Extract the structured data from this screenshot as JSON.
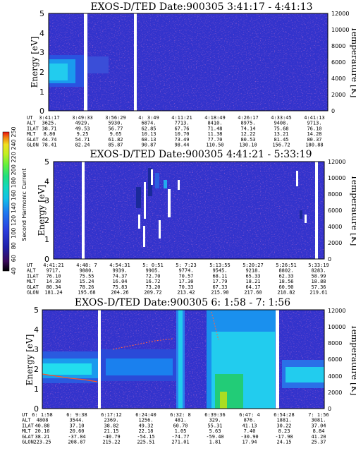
{
  "chart_data": [
    {
      "type": "heatmap",
      "title": "EXOS-D/TED   Date:900305  3:41:17 - 4:41:13",
      "ylabel": "Energy [eV]",
      "y2label": "Temperature [K]",
      "ylim": [
        0,
        5
      ],
      "y2lim": [
        0,
        12000
      ],
      "yticks": [
        "0",
        "1",
        "2",
        "3",
        "4",
        "5"
      ],
      "y2ticks": [
        "0",
        "2000",
        "4000",
        "6000",
        "8000",
        "10000",
        "12000"
      ],
      "info_labels": [
        "UT",
        "ALT",
        "ILAT",
        "MLT",
        "GLAT",
        "GLON"
      ],
      "info_columns": [
        [
          "3:41:17",
          "3625.",
          "38.71",
          "8.80",
          "44.74",
          "78.41"
        ],
        [
          "3:49:33",
          "4929.",
          "49.53",
          "9.25",
          "54.71",
          "82.24"
        ],
        [
          "3:56:29",
          "5930.",
          "56.77",
          "9.65",
          "61.82",
          "85.87"
        ],
        [
          "4: 3:49",
          "6874.",
          "62.85",
          "10.13",
          "68.13",
          "90.87"
        ],
        [
          "4:11:21",
          "7713.",
          "67.76",
          "10.70",
          "73.49",
          "98.44"
        ],
        [
          "4:18:49",
          "8410.",
          "71.48",
          "11.38",
          "77.70",
          "110.50"
        ],
        [
          "4:26:17",
          "8975.",
          "74.14",
          "12.22",
          "80.53",
          "130.10"
        ],
        [
          "4:33:45",
          "9408.",
          "75.68",
          "13.21",
          "81.45",
          "156.72"
        ],
        [
          "4:41:13",
          "9713.",
          "76.10",
          "14.28",
          "80.37",
          "180.88"
        ]
      ],
      "gaps_fraction": [
        0.083,
        0.199
      ]
    },
    {
      "type": "heatmap",
      "title": "EXOS-D/TED   Date:900305  4:41:21 - 5:33:19",
      "ylabel": "Energy [eV]",
      "y2label": "Temperature [K]",
      "ylim": [
        0,
        5
      ],
      "y2lim": [
        0,
        12000
      ],
      "yticks": [
        "0",
        "1",
        "2",
        "3",
        "4",
        "5"
      ],
      "y2ticks": [
        "0",
        "2000",
        "4000",
        "6000",
        "8000",
        "10000",
        "12000"
      ],
      "info_labels": [
        "UT",
        "ALT",
        "ILAT",
        "MLT",
        "GLAT",
        "GLON"
      ],
      "info_columns": [
        [
          "4:41:21",
          "9717.",
          "76.10",
          "14.30",
          "80.34",
          "181.24"
        ],
        [
          "4:48: 7",
          "9880.",
          "75.55",
          "15.24",
          "78.26",
          "195.68"
        ],
        [
          "4:54:31",
          "9939.",
          "74.37",
          "16.04",
          "75.83",
          "204.26"
        ],
        [
          "5: 0:51",
          "9905.",
          "72.70",
          "16.72",
          "73.20",
          "209.72"
        ],
        [
          "5: 7:23",
          "9774.",
          "70.57",
          "17.30",
          "70.33",
          "213.42"
        ],
        [
          "5:13:55",
          "9545.",
          "68.11",
          "17.79",
          "67.33",
          "215.90"
        ],
        [
          "5:20:27",
          "9218.",
          "65.33",
          "18.21",
          "64.17",
          "217.60"
        ],
        [
          "5:26:51",
          "8802.",
          "62.33",
          "18.56",
          "60.90",
          "218.82"
        ],
        [
          "5:33:19",
          "8283.",
          "58.99",
          "18.88",
          "57.36",
          "219.61"
        ]
      ],
      "gaps_fraction": [
        0.115,
        0.969
      ]
    },
    {
      "type": "heatmap",
      "title": "EXOS-D/TED   Date:900305  6: 1:58 - 7: 1:56",
      "ylabel": "Energy [eV]",
      "y2label": "Temperature [K]",
      "ylim": [
        0,
        5
      ],
      "y2lim": [
        0,
        12000
      ],
      "yticks": [
        "0",
        "1",
        "2",
        "3",
        "4",
        "5"
      ],
      "y2ticks": [
        "0",
        "2000",
        "4000",
        "6000",
        "8000",
        "10000",
        "12000"
      ],
      "info_labels": [
        "UT",
        "ALT",
        "ILAT",
        "MLT",
        "GLAT",
        "GLON"
      ],
      "info_columns": [
        [
          "6: 1:58",
          "4808",
          "40.88",
          "20.16",
          "38.21",
          "223.25"
        ],
        [
          "6: 9:38",
          "3544.",
          "37.10",
          "20.60",
          "-37.84",
          "208.87"
        ],
        [
          "6:17:12",
          "2369.",
          "38.82",
          "21.15",
          "-40.79",
          "215.22"
        ],
        [
          "6:24:40",
          "1256.",
          "49.32",
          "22.18",
          "-54.15",
          "225.51"
        ],
        [
          "6:32: 8",
          "481.",
          "60.70",
          "1.05",
          "-74.77",
          "271.01"
        ],
        [
          "6:39:36",
          "329.",
          "55.31",
          "5.63",
          "-59.40",
          "1.81"
        ],
        [
          "6:47: 4",
          "876.",
          "41.13",
          "7.40",
          "-30.90",
          "17.94"
        ],
        [
          "6:54:28",
          "1881.",
          "30.22",
          "8.23",
          "-17.98",
          "24.15"
        ],
        [
          "7: 1:56",
          "3081.",
          "37.04",
          "8.84",
          "41.20",
          "25.37"
        ]
      ],
      "gaps_fraction": [
        0.199,
        0.851
      ]
    }
  ],
  "colorbar": {
    "title": "Second Harmonic Current",
    "ticks": [
      "40",
      "60",
      "80",
      "100",
      "120",
      "140",
      "160",
      "180",
      "200",
      "220",
      "240",
      "250"
    ],
    "colors": [
      "#000000",
      "#3a0a5a",
      "#2020a8",
      "#2a40e0",
      "#1e78f0",
      "#10c0e8",
      "#10d8c0",
      "#20e080",
      "#60f040",
      "#c0f020",
      "#f0e020",
      "#f08010",
      "#e81010"
    ]
  },
  "colors": {
    "background": "#3333cc",
    "speckle": "#7a2aa8",
    "gap": "#ffffff",
    "cyan": "#22ddee",
    "light_blue": "#5599ff",
    "green": "#22cc66",
    "temperature_line": "#ff5522"
  }
}
